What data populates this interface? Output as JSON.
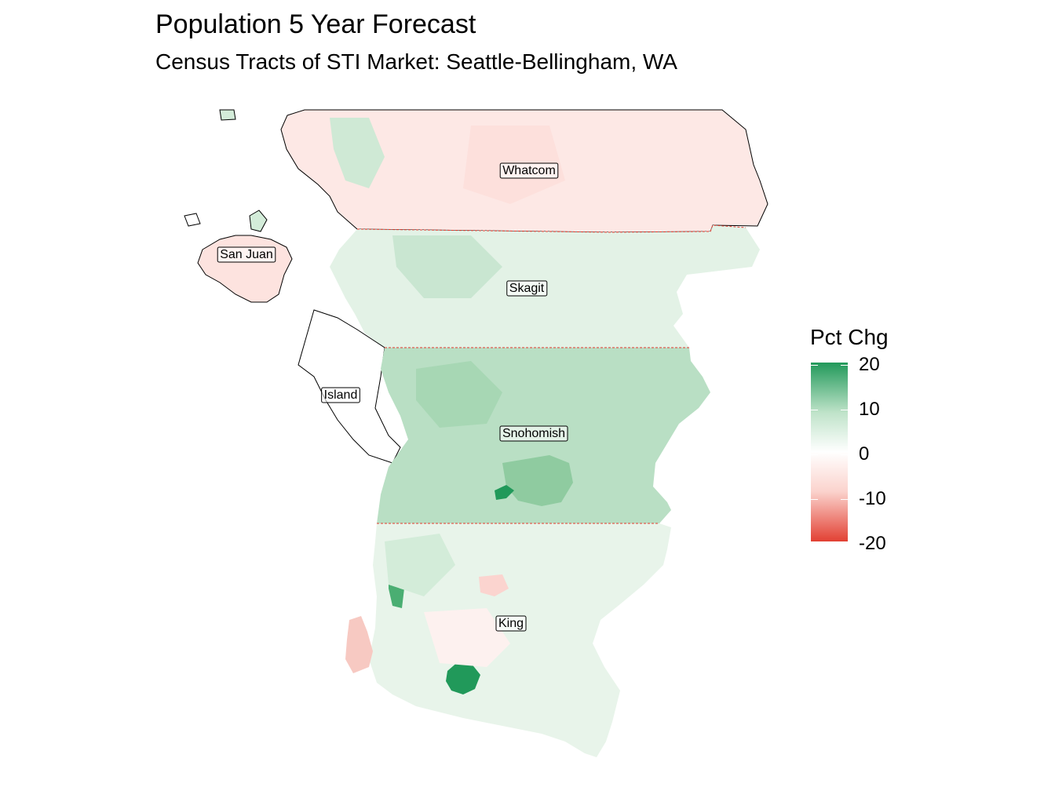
{
  "title": "Population 5 Year Forecast",
  "subtitle": "Census Tracts of STI Market: Seattle-Bellingham, WA",
  "counties": [
    {
      "name": "Whatcom",
      "fill": "#fde8e5"
    },
    {
      "name": "Skagit",
      "fill": "#e3f2e6"
    },
    {
      "name": "Island",
      "fill": "#ffffff"
    },
    {
      "name": "Snohomish",
      "fill": "#b9dfc4"
    },
    {
      "name": "King",
      "fill": "#e8f4ea"
    },
    {
      "name": "San Juan",
      "fill": "#fde3df"
    }
  ],
  "hotspots": [
    {
      "name": "snohomish-growth-area",
      "fill": "#8fcba0"
    },
    {
      "name": "snohomish-peak-tract",
      "fill": "#21995a"
    },
    {
      "name": "king-peak-tract",
      "fill": "#21995a"
    },
    {
      "name": "king-urban-tract",
      "fill": "#4aae72"
    },
    {
      "name": "king-decline-tract",
      "fill": "#fbd4cf"
    },
    {
      "name": "vashon-decline",
      "fill": "#f7c9c2"
    }
  ],
  "legend": {
    "title": "Pct Chg",
    "ticks": [
      "20",
      "10",
      "0",
      "-10",
      "-20"
    ],
    "colors": {
      "high": "#21995a",
      "mid": "#ffffff",
      "low": "#e24033"
    }
  }
}
